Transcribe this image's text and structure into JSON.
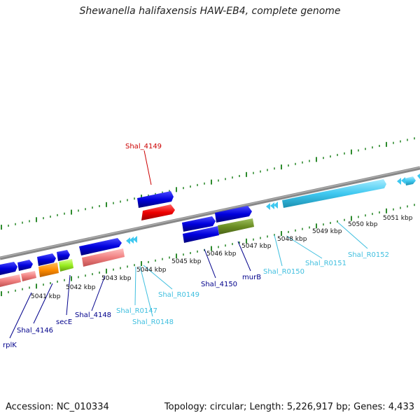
{
  "title": "Shewanella halifaxensis HAW-EB4, complete genome",
  "footer": {
    "accession": "Accession: NC_010334",
    "info": "Topology: circular; Length: 5,226,917 bp; Genes: 4,433"
  },
  "scale_labels": [
    "5041 kbp",
    "5042 kbp",
    "5043 kbp",
    "5044 kbp",
    "5045 kbp",
    "5046 kbp",
    "5047 kbp",
    "5048 kbp",
    "5049 kbp",
    "5050 kbp",
    "5051 kbp"
  ],
  "gene_labels": [
    {
      "text": "rplK",
      "color": "#00008b"
    },
    {
      "text": "Shal_4146",
      "color": "#00008b"
    },
    {
      "text": "secE",
      "color": "#00008b"
    },
    {
      "text": "Shal_4148",
      "color": "#00008b"
    },
    {
      "text": "Shal_R0147",
      "color": "#3fbfdf"
    },
    {
      "text": "Shal_R0148",
      "color": "#3fbfdf"
    },
    {
      "text": "Shal_R0149",
      "color": "#3fbfdf"
    },
    {
      "text": "Shal_4149",
      "color": "#cc0000"
    },
    {
      "text": "Shal_4150",
      "color": "#00008b"
    },
    {
      "text": "murB",
      "color": "#00008b"
    },
    {
      "text": "Shal_R0150",
      "color": "#3fbfdf"
    },
    {
      "text": "Shal_R0151",
      "color": "#3fbfdf"
    },
    {
      "text": "Shal_R0152",
      "color": "#3fbfdf"
    }
  ],
  "colors": {
    "cds": "#0000dd",
    "cds_light": "#5a5aff",
    "cds_dark": "#000088",
    "rna": "#3fc8f0",
    "rna_light": "#9ae6ff",
    "pseudo": "#f08080",
    "orange": "#ff8c00",
    "lime": "#99ee22",
    "olive": "#6b8e23",
    "red": "#ee0000",
    "ticks": "#2e8b2e",
    "backbone": "#888888"
  }
}
